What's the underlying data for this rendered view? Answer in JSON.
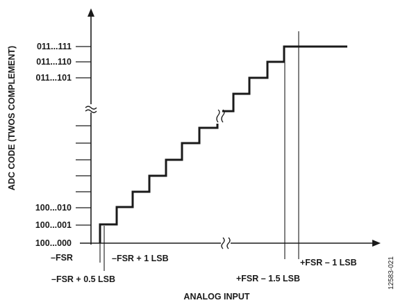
{
  "figure": {
    "y_axis_title": "ADC CODE (TWOS COMPLEMENT)",
    "x_axis_title": "ANALOG INPUT",
    "figure_id": "12583-021",
    "y_codes": {
      "c1": "011...111",
      "c2": "011...110",
      "c3": "011...101",
      "c4": "100...010",
      "c5": "100...001",
      "c6": "100...000"
    },
    "x_marks": {
      "neg_fsr": "–FSR",
      "neg_fsr_plus_1lsb": "–FSR + 1 LSB",
      "neg_fsr_plus_half_lsb": "–FSR + 0.5 LSB",
      "pos_fsr_minus_1_5lsb": "+FSR – 1.5 LSB",
      "pos_fsr_minus_1lsb": "+FSR – 1 LSB"
    },
    "line_color": "#1a1a1a"
  }
}
